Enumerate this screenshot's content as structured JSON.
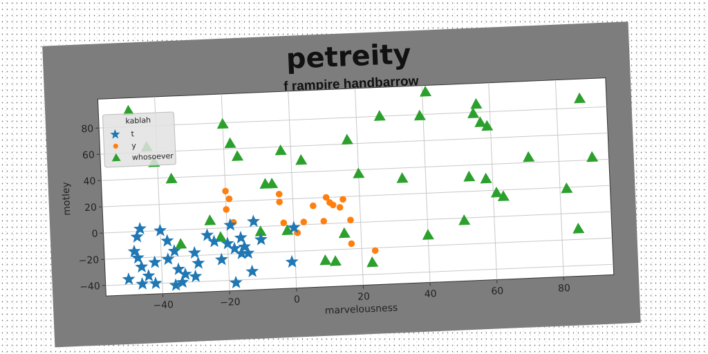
{
  "title": "petreity",
  "chart_data": {
    "type": "scatter",
    "subtitle": "f rampire handbarrow",
    "xlabel": "marvelousness",
    "ylabel": "motley",
    "xlim": [
      -57,
      95
    ],
    "ylim": [
      -48,
      102
    ],
    "xticks": [
      -40,
      -20,
      0,
      20,
      40,
      60,
      80
    ],
    "yticks": [
      -40,
      -20,
      0,
      20,
      40,
      60,
      80
    ],
    "grid": true,
    "legend": {
      "title": "kablah",
      "placement": "upper-left"
    },
    "series": [
      {
        "name": "t",
        "marker": "star",
        "color": "#1f77b4",
        "points": [
          [
            -46,
            2
          ],
          [
            -47,
            -4
          ],
          [
            -48,
            -15
          ],
          [
            -47,
            -20
          ],
          [
            -46,
            -27
          ],
          [
            -44,
            -34
          ],
          [
            -50,
            -36
          ],
          [
            -46,
            -40
          ],
          [
            -42,
            -24
          ],
          [
            -40,
            0
          ],
          [
            -38,
            -8
          ],
          [
            -38,
            -22
          ],
          [
            -36,
            -16
          ],
          [
            -35,
            -30
          ],
          [
            -34,
            -40
          ],
          [
            -33,
            -34
          ],
          [
            -30,
            -18
          ],
          [
            -29,
            -26
          ],
          [
            -30,
            -36
          ],
          [
            -26,
            -5
          ],
          [
            -24,
            -10
          ],
          [
            -22,
            -24
          ],
          [
            -20,
            -12
          ],
          [
            -19,
            2
          ],
          [
            -18,
            -16
          ],
          [
            -16,
            -8
          ],
          [
            -16,
            -20
          ],
          [
            -15,
            -15
          ],
          [
            -14,
            -20
          ],
          [
            -12,
            4
          ],
          [
            -13,
            -34
          ],
          [
            -18,
            -42
          ],
          [
            -10,
            -10
          ],
          [
            -1,
            -28
          ],
          [
            0,
            -2
          ],
          [
            -42,
            -40
          ],
          [
            -36,
            -42
          ]
        ]
      },
      {
        "name": "y",
        "marker": "circle",
        "color": "#ff7f0e",
        "points": [
          [
            -20,
            28
          ],
          [
            -19,
            22
          ],
          [
            -20,
            14
          ],
          [
            -18,
            4
          ],
          [
            -12,
            4
          ],
          [
            -4,
            24
          ],
          [
            -4,
            18
          ],
          [
            -3,
            2
          ],
          [
            1,
            -6
          ],
          [
            3,
            2
          ],
          [
            6,
            14
          ],
          [
            9,
            2
          ],
          [
            10,
            20
          ],
          [
            11,
            16
          ],
          [
            12,
            14
          ],
          [
            15,
            18
          ],
          [
            14,
            12
          ],
          [
            17,
            2
          ],
          [
            17,
            -16
          ],
          [
            24,
            -22
          ]
        ]
      },
      {
        "name": "whosoever",
        "marker": "triangle",
        "color": "#2ca02c",
        "points": [
          [
            -48,
            92
          ],
          [
            -43,
            64
          ],
          [
            -41,
            52
          ],
          [
            -36,
            39
          ],
          [
            -34,
            -11
          ],
          [
            -25,
            6
          ],
          [
            -22,
            -7
          ],
          [
            -20,
            79
          ],
          [
            -18,
            64
          ],
          [
            -16,
            54
          ],
          [
            -10,
            -4
          ],
          [
            -8,
            32
          ],
          [
            -6,
            32
          ],
          [
            -3,
            57
          ],
          [
            -2,
            -4
          ],
          [
            3,
            49
          ],
          [
            9,
            -28
          ],
          [
            12,
            -29
          ],
          [
            15,
            -8
          ],
          [
            17,
            63
          ],
          [
            20,
            37
          ],
          [
            23,
            -31
          ],
          [
            27,
            80
          ],
          [
            33,
            32
          ],
          [
            39,
            79
          ],
          [
            40,
            -12
          ],
          [
            41,
            97
          ],
          [
            51,
            -2
          ],
          [
            53,
            31
          ],
          [
            55,
            79
          ],
          [
            56,
            86
          ],
          [
            57,
            72
          ],
          [
            58,
            29
          ],
          [
            59,
            69
          ],
          [
            61,
            18
          ],
          [
            63,
            15
          ],
          [
            71,
            44
          ],
          [
            82,
            19
          ],
          [
            85,
            -12
          ],
          [
            87,
            87
          ],
          [
            90,
            42
          ]
        ]
      }
    ]
  }
}
